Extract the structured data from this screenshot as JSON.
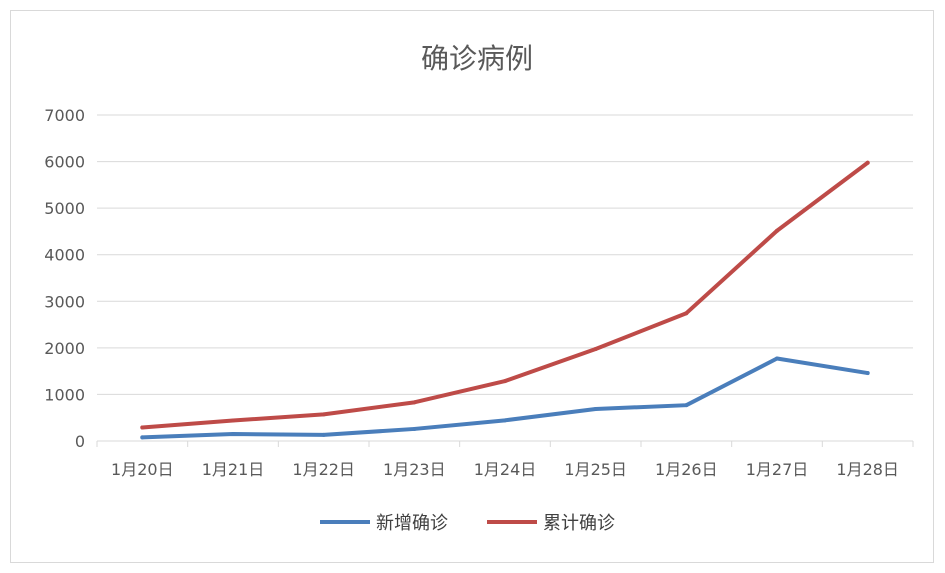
{
  "chart_data": {
    "type": "line",
    "title": "确诊病例",
    "xlabel": "",
    "ylabel": "",
    "categories": [
      "1月20日",
      "1月21日",
      "1月22日",
      "1月23日",
      "1月24日",
      "1月25日",
      "1月26日",
      "1月27日",
      "1月28日"
    ],
    "ylim": [
      0,
      7000
    ],
    "yticks": [
      0,
      1000,
      2000,
      3000,
      4000,
      5000,
      6000,
      7000
    ],
    "grid": true,
    "legend_position": "bottom",
    "series": [
      {
        "name": "新增确诊",
        "color": "#4a7ebb",
        "values": [
          77,
          149,
          131,
          259,
          444,
          688,
          769,
          1771,
          1459
        ]
      },
      {
        "name": "累计确诊",
        "color": "#be4b48",
        "values": [
          291,
          440,
          571,
          830,
          1287,
          1975,
          2744,
          4515,
          5974
        ]
      }
    ]
  }
}
